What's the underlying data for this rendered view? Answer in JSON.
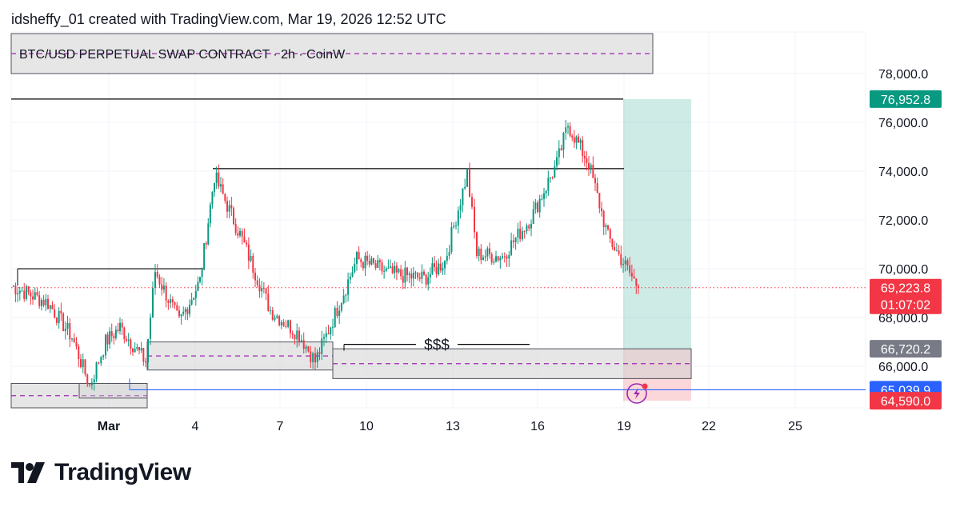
{
  "header": {
    "attribution": "idsheffy_01 created with TradingView.com, Mar 19, 2026 12:52 UTC"
  },
  "symbol": {
    "title": "BTC/USD PERPETUAL SWAP CONTRACT · 2h · CoinW"
  },
  "brand": {
    "name": "TradingView"
  },
  "chart_data": {
    "type": "candlestick",
    "symbol": "BTC/USD PERPETUAL SWAP CONTRACT",
    "interval": "2h",
    "exchange": "CoinW",
    "x_ticks": [
      "Mar",
      "4",
      "7",
      "10",
      "13",
      "16",
      "19",
      "22",
      "25"
    ],
    "y_ticks": [
      "66,000.0",
      "68,000.0",
      "70,000.0",
      "72,000.0",
      "74,000.0",
      "76,000.0",
      "78,000.0"
    ],
    "ylim": [
      64300,
      79700
    ],
    "last_price": {
      "label": "69,223.8",
      "countdown": "01:07:02",
      "value": 69223.8
    },
    "price_labels": [
      {
        "label": "76,952.8",
        "value": 76952.8,
        "color": "#089981"
      },
      {
        "label": "66,720.2",
        "value": 66720.2,
        "color": "#787b86"
      },
      {
        "label": "65,039.9",
        "value": 65039.9,
        "color": "#2962ff"
      },
      {
        "label": "64,590.0",
        "value": 64590.0,
        "color": "#f23645"
      }
    ],
    "annotations": [
      {
        "text": "$$$",
        "value": 66900
      }
    ],
    "position": {
      "type": "long",
      "entry": 66720.2,
      "target": 76952.8,
      "stop": 64590.0
    },
    "horizontal_levels": [
      {
        "value": 76952.8,
        "color": "#000000"
      },
      {
        "value": 74100,
        "color": "#000000"
      },
      {
        "value": 70000,
        "color": "#000000"
      },
      {
        "value": 65039.9,
        "color": "#2962ff"
      }
    ],
    "zones": [
      {
        "top": 67000,
        "bottom": 65850
      },
      {
        "top": 66720.2,
        "bottom": 65500
      },
      {
        "top": 65300,
        "bottom": 64300
      }
    ],
    "key_points": [
      {
        "t": "Feb 26",
        "close": 69300
      },
      {
        "t": "Feb 27",
        "close": 68600
      },
      {
        "t": "Feb 28",
        "close": 67200
      },
      {
        "t": "Mar 1",
        "close": 65200
      },
      {
        "t": "Mar 1",
        "close": 67000
      },
      {
        "t": "Mar 2",
        "close": 67600
      },
      {
        "t": "Mar 3",
        "close": 66200
      },
      {
        "t": "Mar 3",
        "close": 69900
      },
      {
        "t": "Mar 4",
        "close": 67800
      },
      {
        "t": "Mar 4",
        "close": 69500
      },
      {
        "t": "Mar 5",
        "close": 73800
      },
      {
        "t": "Mar 6",
        "close": 71400
      },
      {
        "t": "Mar 7",
        "close": 68300
      },
      {
        "t": "Mar 8",
        "close": 67300
      },
      {
        "t": "Mar 9",
        "close": 66200
      },
      {
        "t": "Mar 9",
        "close": 67900
      },
      {
        "t": "Mar 10",
        "close": 70400
      },
      {
        "t": "Mar 11",
        "close": 69800
      },
      {
        "t": "Mar 12",
        "close": 69600
      },
      {
        "t": "Mar 13",
        "close": 70300
      },
      {
        "t": "Mar 14",
        "close": 73900
      },
      {
        "t": "Mar 14",
        "close": 70600
      },
      {
        "t": "Mar 15",
        "close": 70500
      },
      {
        "t": "Mar 16",
        "close": 72100
      },
      {
        "t": "Mar 17",
        "close": 74300
      },
      {
        "t": "Mar 17",
        "close": 75900
      },
      {
        "t": "Mar 18",
        "close": 74300
      },
      {
        "t": "Mar 18",
        "close": 71300
      },
      {
        "t": "Mar 19",
        "close": 69223.8
      }
    ]
  }
}
